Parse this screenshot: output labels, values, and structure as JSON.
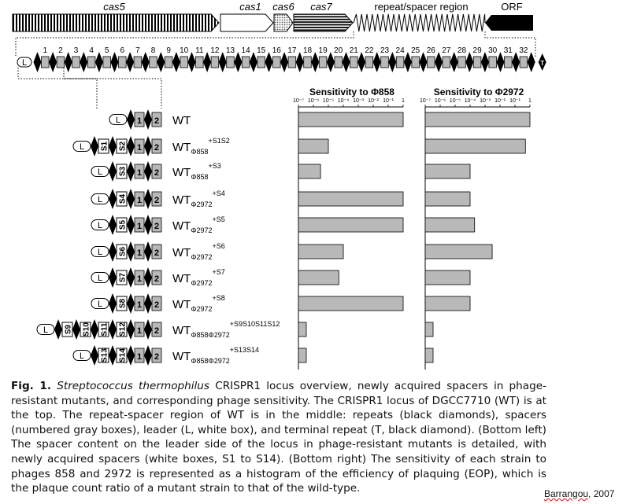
{
  "operon": {
    "genes": [
      "cas5",
      "cas1",
      "cas6",
      "cas7"
    ],
    "region_label": "repeat/spacer region",
    "orf_label": "ORF"
  },
  "locus": {
    "leader": "L",
    "terminal": "T",
    "spacers": [
      "1",
      "2",
      "3",
      "4",
      "5",
      "6",
      "7",
      "8",
      "9",
      "10",
      "11",
      "12",
      "13",
      "14",
      "15",
      "16",
      "17",
      "18",
      "19",
      "20",
      "21",
      "22",
      "23",
      "24",
      "25",
      "26",
      "27",
      "28",
      "29",
      "30",
      "31",
      "32"
    ]
  },
  "sensitivity": {
    "panels": [
      {
        "title": "Sensitivity to Φ858"
      },
      {
        "title": "Sensitivity to Φ2972"
      }
    ],
    "ticks": [
      "10⁻⁷",
      "10⁻⁶",
      "10⁻⁵",
      "10⁻⁴",
      "10⁻³",
      "10⁻²",
      "10⁻¹",
      "1"
    ]
  },
  "chart_data": {
    "type": "bar",
    "orientation": "horizontal",
    "x_scale": "log",
    "xlim": [
      1e-07,
      1
    ],
    "categories": [
      "WT",
      "WT Φ858 +S1S2",
      "WT Φ858 +S3",
      "WT Φ2972 +S4",
      "WT Φ2972 +S5",
      "WT Φ2972 +S6",
      "WT Φ2972 +S7",
      "WT Φ2972 +S8",
      "WT Φ858Φ2972 +S9S10S11S12",
      "WT Φ858Φ2972 +S13S14"
    ],
    "series": [
      {
        "name": "Sensitivity to Φ858",
        "values": [
          1,
          1e-05,
          3e-06,
          1,
          1,
          0.0001,
          5e-05,
          1,
          1e-07,
          1e-07
        ]
      },
      {
        "name": "Sensitivity to Φ2972",
        "values": [
          1,
          0.5,
          0.0001,
          0.0001,
          0.0002,
          0.003,
          0.0001,
          0.0001,
          1e-07,
          1e-07
        ]
      }
    ],
    "grid": false
  },
  "strains": [
    {
      "new": [],
      "main": "WT",
      "sub": "",
      "sup": ""
    },
    {
      "new": [
        "S1",
        "S2"
      ],
      "main": "WT",
      "sub": "Φ858",
      "sup": "+S1S2"
    },
    {
      "new": [
        "S3"
      ],
      "main": "WT",
      "sub": "Φ858",
      "sup": "+S3"
    },
    {
      "new": [
        "S4"
      ],
      "main": "WT",
      "sub": "Φ2972",
      "sup": "+S4"
    },
    {
      "new": [
        "S5"
      ],
      "main": "WT",
      "sub": "Φ2972",
      "sup": "+S5"
    },
    {
      "new": [
        "S6"
      ],
      "main": "WT",
      "sub": "Φ2972",
      "sup": "+S6"
    },
    {
      "new": [
        "S7"
      ],
      "main": "WT",
      "sub": "Φ2972",
      "sup": "+S7"
    },
    {
      "new": [
        "S8"
      ],
      "main": "WT",
      "sub": "Φ2972",
      "sup": "+S8"
    },
    {
      "new": [
        "S9",
        "S10",
        "S11",
        "S12"
      ],
      "main": "WT",
      "sub": "Φ858Φ2972",
      "sup": "+S9S10S11S12"
    },
    {
      "new": [
        "S13",
        "S14"
      ],
      "main": "WT",
      "sub": "Φ858Φ2972",
      "sup": "+S13S14"
    }
  ],
  "caption": {
    "fig_label": "Fig. 1.",
    "species": "Streptococcus thermophilus",
    "text": " CRISPR1 locus overview, newly acquired spacers in phage-resistant mutants, and corresponding phage sensitivity. The CRISPR1 locus of DGCC7710 (WT) is at the top. The repeat-spacer region of WT is in the middle: repeats (black diamonds), spacers (numbered gray boxes), leader (L, white box), and terminal repeat (T, black diamond). (Bottom left) The spacer content on the leader side of the locus in phage-resistant mutants is detailed, with newly acquired spacers (white boxes, S1 to S14). (Bottom right) The sensitivity of each strain to phages 858 and 2972 is represented as a histogram of the efficiency of plaquing (EOP), which is the plaque count ratio of a mutant strain to that of the wild-type."
  },
  "credit": {
    "author": "Barrangou",
    "year": ", 2007"
  }
}
